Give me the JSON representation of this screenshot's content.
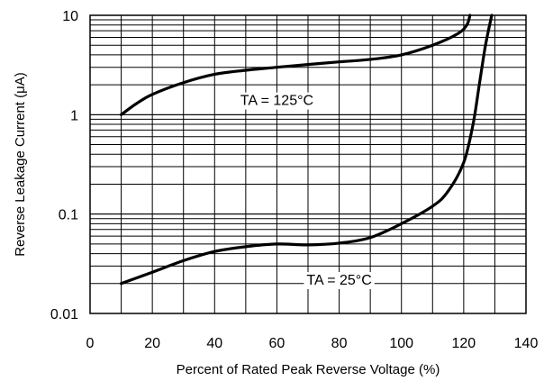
{
  "chart_data": {
    "type": "line",
    "title": "",
    "xlabel": "Percent of Rated Peak Reverse Voltage (%)",
    "ylabel": "Reverse Leakage Current (μA)",
    "x_scale": "linear",
    "y_scale": "log",
    "xlim": [
      0,
      140
    ],
    "ylim": [
      0.01,
      10
    ],
    "grid": true,
    "x_ticks": [
      "0",
      "20",
      "40",
      "60",
      "80",
      "100",
      "120",
      "140"
    ],
    "y_ticks": [
      "0.01",
      "0.1",
      "1",
      "10"
    ],
    "series": [
      {
        "name": "TA = 125°C",
        "x": [
          10,
          15,
          20,
          30,
          40,
          50,
          60,
          70,
          80,
          90,
          100,
          110,
          118,
          121,
          122
        ],
        "y": [
          1.0,
          1.3,
          1.6,
          2.1,
          2.55,
          2.8,
          3.0,
          3.2,
          3.4,
          3.6,
          4.0,
          5.0,
          6.5,
          8.0,
          10.0
        ]
      },
      {
        "name": "TA = 25°C",
        "x": [
          10,
          20,
          30,
          40,
          50,
          60,
          70,
          80,
          90,
          100,
          110,
          115,
          120,
          123,
          125,
          127,
          129
        ],
        "y": [
          0.02,
          0.026,
          0.034,
          0.042,
          0.047,
          0.05,
          0.049,
          0.051,
          0.058,
          0.08,
          0.12,
          0.17,
          0.33,
          0.8,
          2.0,
          5.0,
          10.0
        ]
      }
    ],
    "annotations": [
      {
        "text": "TA = 125°C",
        "x": 60,
        "y": 1.25
      },
      {
        "text": "TA = 25°C",
        "x": 80,
        "y": 0.0195
      }
    ]
  }
}
